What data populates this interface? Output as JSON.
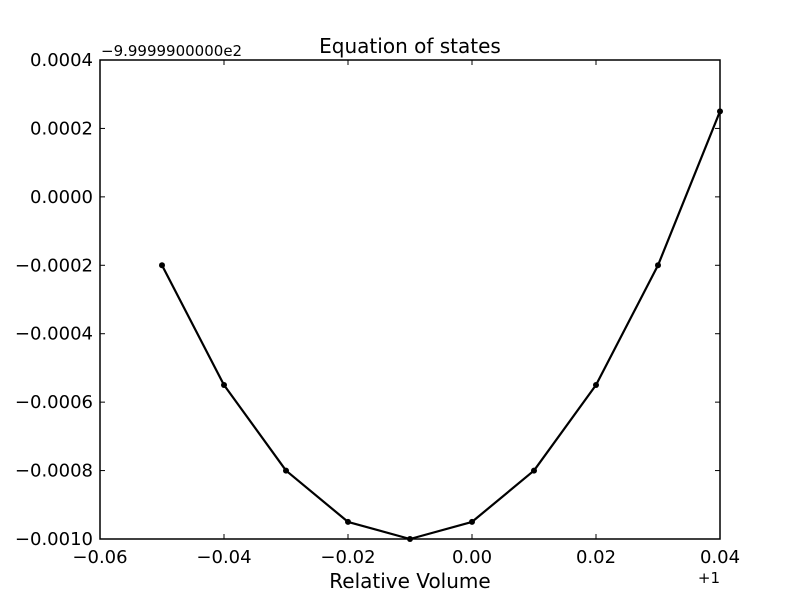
{
  "chart_data": {
    "type": "line",
    "title": "Equation of states",
    "xlabel": "Relative Volume",
    "ylabel": "",
    "x_offset_label": "+1",
    "y_offset_label": "−9.9999900000e2",
    "xlim": [
      -0.06,
      0.04
    ],
    "ylim": [
      -0.001,
      0.0004
    ],
    "x_ticks": [
      -0.06,
      -0.04,
      -0.02,
      0.0,
      0.02,
      0.04
    ],
    "x_tick_labels": [
      "−0.06",
      "−0.04",
      "−0.02",
      "0.00",
      "0.02",
      "0.04"
    ],
    "y_ticks": [
      -0.001,
      -0.0008,
      -0.0006,
      -0.0004,
      -0.0002,
      0.0,
      0.0002,
      0.0004
    ],
    "y_tick_labels": [
      "−0.0010",
      "−0.0008",
      "−0.0006",
      "−0.0004",
      "−0.0002",
      "0.0000",
      "0.0002",
      "0.0004"
    ],
    "grid": false,
    "legend": "none",
    "series": [
      {
        "x": [
          -0.05,
          -0.04,
          -0.03,
          -0.02,
          -0.01,
          0.0,
          0.01,
          0.02,
          0.03,
          0.04
        ],
        "y": [
          -0.0002,
          -0.00055,
          -0.0008,
          -0.00095,
          -0.001,
          -0.00095,
          -0.0008,
          -0.00055,
          -0.0002,
          0.00025
        ],
        "color": "#000000"
      }
    ]
  }
}
